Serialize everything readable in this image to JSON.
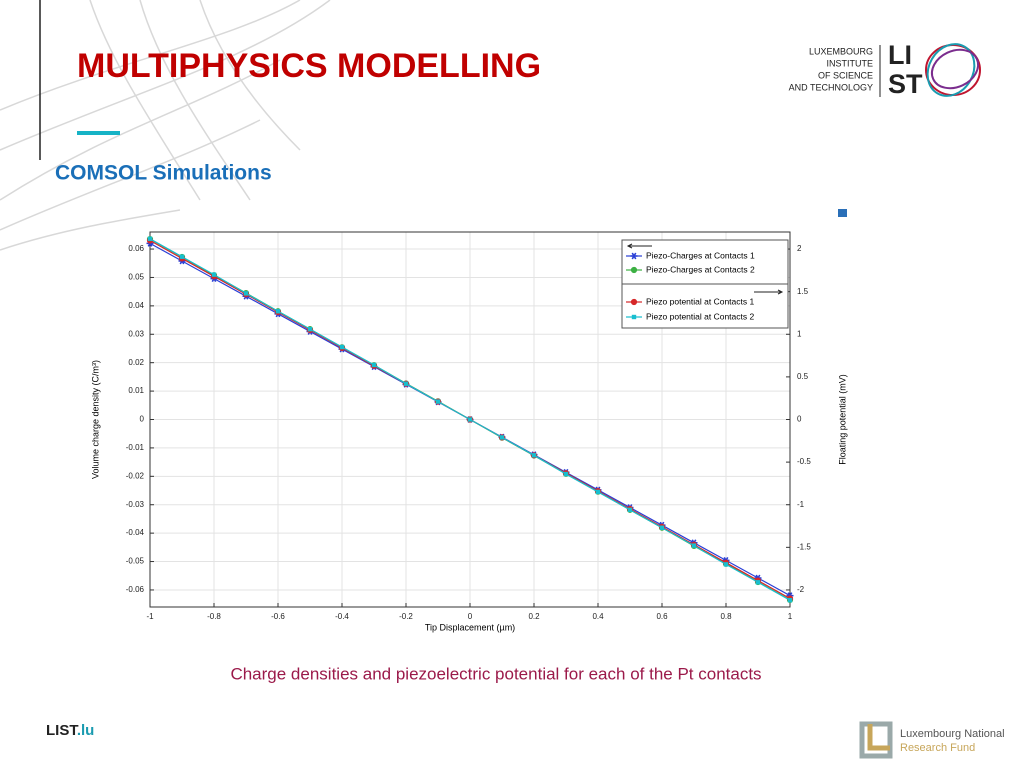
{
  "title": "MULTIPHYSICS MODELLING",
  "subtitle": "COMSOL Simulations",
  "caption": "Charge densities and piezoelectric potential for each of the Pt contacts",
  "logo": {
    "lines": [
      "LUXEMBOURG",
      "INSTITUTE",
      "OF SCIENCE",
      "AND TECHNOLOGY"
    ],
    "mark": [
      "LI",
      "ST"
    ]
  },
  "footer": {
    "left": [
      "LIST",
      ".lu"
    ],
    "right": [
      "Luxembourg National",
      "Research Fund"
    ]
  },
  "chart_data": {
    "type": "line",
    "xlabel": "Tip Displacement (µm)",
    "ylabel": "Volume charge density (C/m³)",
    "y2label": "Floating potential (mV)",
    "x": [
      -1,
      -0.9,
      -0.8,
      -0.7,
      -0.6,
      -0.5,
      -0.4,
      -0.3,
      -0.2,
      -0.1,
      0,
      0.1,
      0.2,
      0.3,
      0.4,
      0.5,
      0.6,
      0.7,
      0.8,
      0.9,
      1
    ],
    "xlim": [
      -1,
      1
    ],
    "xticks": [
      -1,
      -0.8,
      -0.6,
      -0.4,
      -0.2,
      0,
      0.2,
      0.4,
      0.6,
      0.8,
      1
    ],
    "ylim": [
      -0.066,
      0.066
    ],
    "yticks": [
      -0.06,
      -0.05,
      -0.04,
      -0.03,
      -0.02,
      -0.01,
      0,
      0.01,
      0.02,
      0.03,
      0.04,
      0.05,
      0.06
    ],
    "y2lim": [
      -2.2,
      2.2
    ],
    "y2ticks": [
      -2,
      -1.5,
      -1,
      -0.5,
      0,
      0.5,
      1,
      1.5,
      2
    ],
    "grid": true,
    "legend": "top-right",
    "series": [
      {
        "name": "Piezo-Charges at Contacts 1",
        "color": "#2a3fd6",
        "marker": "star",
        "values": [
          0.062,
          0.0558,
          0.0496,
          0.0434,
          0.0372,
          0.031,
          0.0248,
          0.0186,
          0.0124,
          0.0062,
          0,
          -0.0062,
          -0.0124,
          -0.0186,
          -0.0248,
          -0.031,
          -0.0372,
          -0.0434,
          -0.0496,
          -0.0558,
          -0.062
        ]
      },
      {
        "name": "Piezo-Charges at Contacts 2",
        "color": "#3cb043",
        "marker": "circle",
        "values": [
          0.0635,
          0.0572,
          0.0508,
          0.0445,
          0.0381,
          0.0318,
          0.0254,
          0.0191,
          0.0127,
          0.0064,
          0,
          -0.0064,
          -0.0127,
          -0.0191,
          -0.0254,
          -0.0318,
          -0.0381,
          -0.0445,
          -0.0508,
          -0.0572,
          -0.0635
        ]
      },
      {
        "name": "Piezo potential  at Contacts 1",
        "color": "#d62728",
        "marker": "circle",
        "axis": "y2",
        "values": [
          2.1,
          1.89,
          1.68,
          1.47,
          1.26,
          1.05,
          0.84,
          0.63,
          0.42,
          0.21,
          0,
          -0.21,
          -0.42,
          -0.63,
          -0.84,
          -1.05,
          -1.26,
          -1.47,
          -1.68,
          -1.89,
          -2.1
        ]
      },
      {
        "name": "Piezo potential  at Contacts 2",
        "color": "#17becf",
        "marker": "square",
        "axis": "y2",
        "values": [
          2.12,
          1.91,
          1.7,
          1.48,
          1.27,
          1.06,
          0.85,
          0.64,
          0.42,
          0.21,
          0,
          -0.21,
          -0.42,
          -0.64,
          -0.85,
          -1.06,
          -1.27,
          -1.48,
          -1.7,
          -1.91,
          -2.12
        ]
      }
    ]
  }
}
